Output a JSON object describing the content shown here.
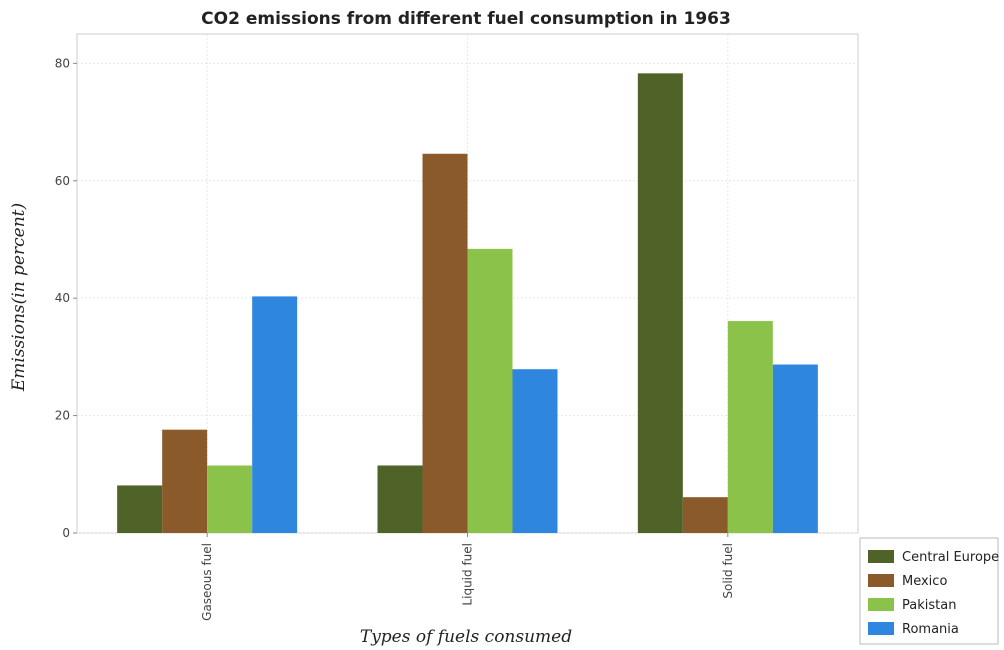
{
  "chart_data": {
    "type": "bar",
    "title": "CO2 emissions from different fuel consumption in 1963",
    "xlabel": "Types of fuels consumed",
    "ylabel": "Emissions(in percent)",
    "categories": [
      "Gaseous fuel",
      "Liquid fuel",
      "Solid fuel"
    ],
    "ylim": [
      0,
      85
    ],
    "yticks": [
      0,
      20,
      40,
      60,
      80
    ],
    "grid": true,
    "legend_position": "bottom-right",
    "series": [
      {
        "name": "Central Europe",
        "color": "#4f6228",
        "values": [
          8.1,
          11.5,
          78.3
        ]
      },
      {
        "name": "Mexico",
        "color": "#8b5a2b",
        "values": [
          17.6,
          64.6,
          6.1
        ]
      },
      {
        "name": "Pakistan",
        "color": "#8bc34a",
        "values": [
          11.5,
          48.4,
          36.1
        ]
      },
      {
        "name": "Romania",
        "color": "#2e86de",
        "values": [
          40.3,
          27.9,
          28.7
        ]
      }
    ]
  }
}
